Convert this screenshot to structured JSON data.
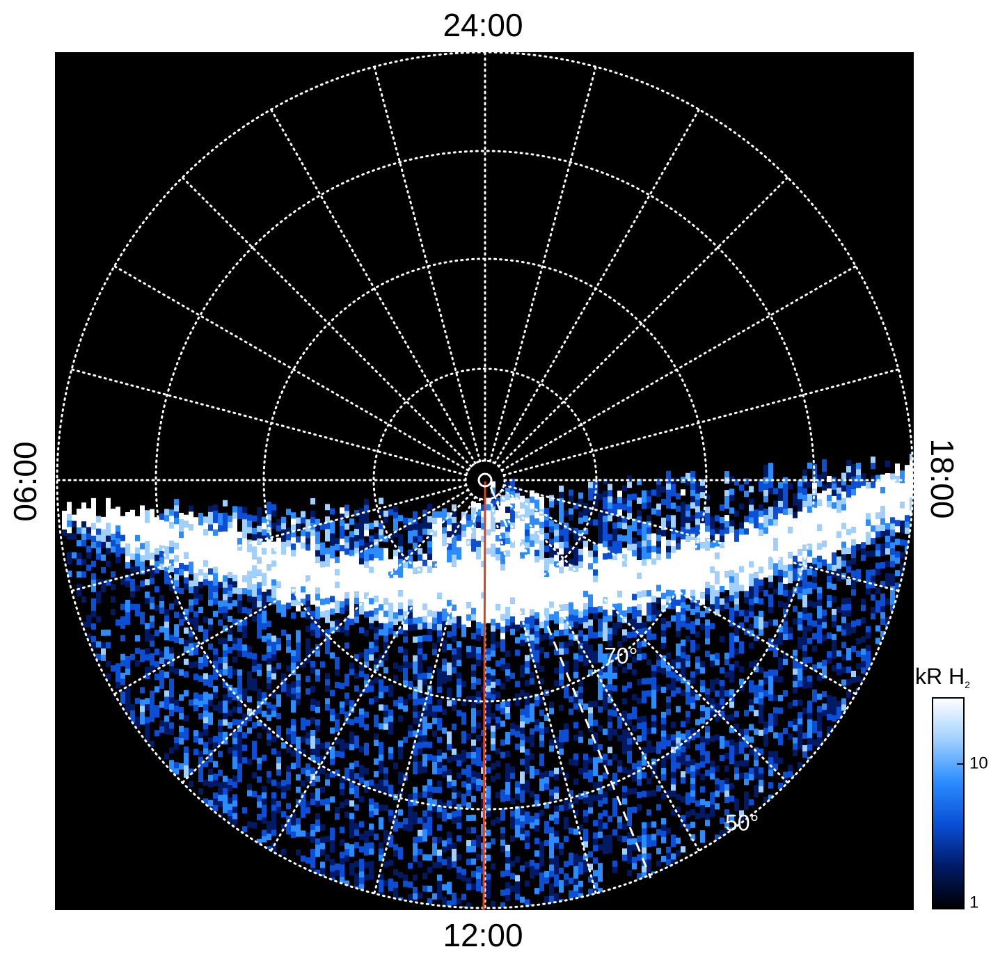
{
  "labels": {
    "top": "24:00",
    "left": "06:00",
    "right": "18:00",
    "bottom": "12:00",
    "lat_inner": "70°",
    "lat_outer": "50°"
  },
  "colorbar": {
    "label": "kR H",
    "label_subscript": "2",
    "log": true,
    "range": [
      1,
      28.6
    ],
    "ticks": [
      1,
      10
    ],
    "colors": [
      "#000000",
      "#001a66",
      "#0a4fd6",
      "#2a8cff",
      "#9fd0ff",
      "#ffffff"
    ]
  }
}
